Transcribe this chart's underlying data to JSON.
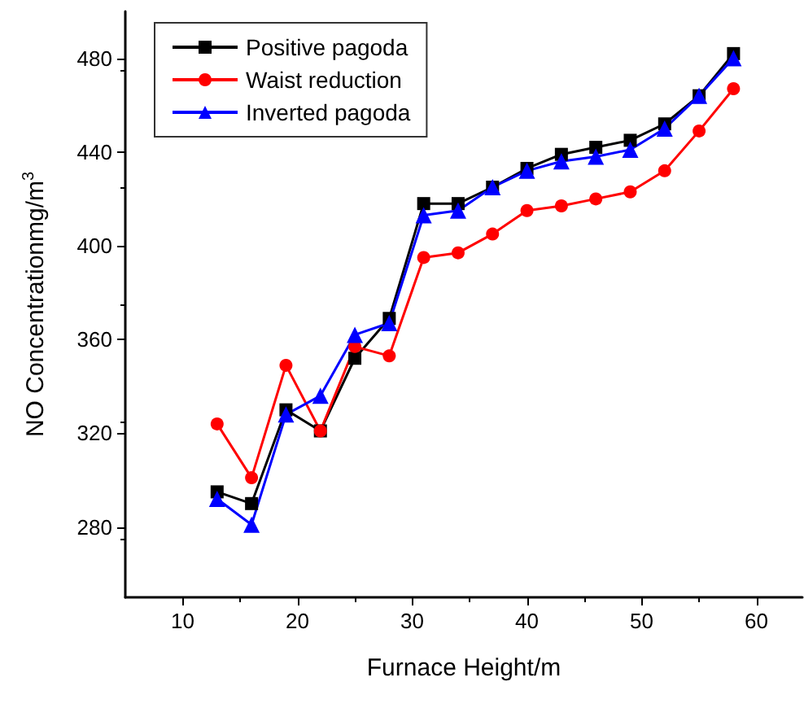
{
  "chart_data": {
    "type": "line",
    "xlabel": "Furnace Height/m",
    "ylabel": "NO Concentrationmg/m$^{3}$",
    "x": [
      13,
      16,
      19,
      22,
      25,
      28,
      31,
      34,
      37,
      40,
      43,
      46,
      49,
      52,
      55,
      58
    ],
    "series": [
      {
        "name": "Positive pagoda",
        "color": "#000000",
        "marker": "square",
        "values": [
          295,
          290,
          330,
          321,
          352,
          369,
          418,
          418,
          425,
          433,
          439,
          442,
          445,
          452,
          464,
          482
        ]
      },
      {
        "name": "Waist reduction",
        "color": "#ff0000",
        "marker": "circle",
        "values": [
          324,
          301,
          349,
          321,
          357,
          353,
          395,
          397,
          405,
          415,
          417,
          420,
          423,
          432,
          449,
          467
        ]
      },
      {
        "name": "Inverted pagoda",
        "color": "#0000ff",
        "marker": "triangle",
        "values": [
          292,
          281,
          328,
          336,
          362,
          367,
          413,
          415,
          425,
          432,
          436,
          438,
          441,
          450,
          464,
          480
        ]
      }
    ],
    "xlim": [
      5,
      64
    ],
    "xticks": [
      10,
      20,
      30,
      40,
      50,
      60
    ],
    "ylim": [
      250,
      500
    ],
    "yticks": [
      280,
      320,
      360,
      400,
      440,
      480
    ],
    "grid": false,
    "legend": "top left",
    "line_style": "solid"
  }
}
